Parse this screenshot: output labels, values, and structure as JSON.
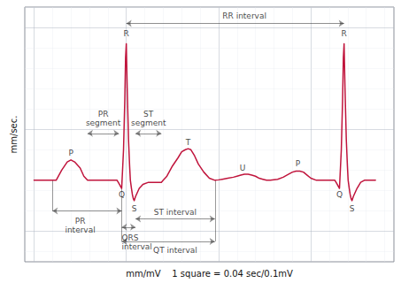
{
  "chart_data": {
    "type": "line",
    "color": "#c0143c",
    "xlabel": "mm/mV    1 square = 0.04 sec/0.1mV",
    "ylabel": "mm/sec.",
    "xlim": [
      -0.5,
      19.5
    ],
    "ylim": [
      3.5,
      16.0
    ],
    "xticks": [
      0,
      1,
      2,
      3,
      4,
      5,
      6,
      7,
      8,
      9,
      10,
      11,
      12,
      13,
      14,
      15,
      16,
      17,
      18,
      19
    ],
    "yticks": [
      4,
      5,
      6,
      7,
      8,
      9,
      10,
      11,
      12,
      13,
      14,
      15,
      16
    ],
    "grid": true,
    "tick_labels": false,
    "x": [
      0.0,
      1.0,
      1.2,
      1.5,
      1.8,
      2.0,
      2.2,
      2.5,
      2.7,
      2.9,
      3.2,
      3.8,
      4.2,
      4.5,
      4.6,
      4.75,
      4.85,
      4.92,
      4.96,
      5.0,
      5.05,
      5.12,
      5.18,
      5.22,
      5.28,
      5.33,
      5.38,
      5.43,
      5.5,
      5.7,
      5.9,
      6.2,
      6.6,
      6.9,
      7.0,
      7.2,
      7.5,
      7.8,
      8.0,
      8.2,
      8.35,
      8.5,
      8.7,
      8.9,
      9.2,
      9.5,
      9.8,
      10.0,
      10.2,
      10.5,
      10.8,
      11.0,
      11.2,
      11.4,
      11.6,
      11.8,
      12.0,
      12.2,
      12.4,
      12.6,
      12.8,
      13.2,
      13.5,
      13.8,
      14.0,
      14.2,
      14.4,
      14.6,
      14.8,
      15.0,
      15.3,
      15.8,
      16.3,
      16.4,
      16.55,
      16.65,
      16.72,
      16.76,
      16.8,
      16.85,
      16.92,
      16.98,
      17.02,
      17.08,
      17.13,
      17.18,
      17.23,
      17.3,
      17.5,
      17.7,
      17.9,
      18.5
    ],
    "values": [
      7.5,
      7.5,
      7.5,
      8.0,
      8.4,
      8.5,
      8.4,
      8.1,
      7.7,
      7.5,
      7.5,
      7.5,
      7.5,
      7.5,
      7.35,
      7.1,
      9.0,
      11.5,
      13.5,
      14.2,
      12.0,
      9.5,
      8.2,
      7.5,
      7.1,
      6.8,
      6.6,
      6.5,
      6.7,
      7.1,
      7.3,
      7.4,
      7.4,
      7.4,
      7.5,
      7.7,
      8.2,
      8.6,
      8.9,
      9.0,
      9.05,
      9.0,
      8.7,
      8.3,
      7.9,
      7.6,
      7.5,
      7.52,
      7.55,
      7.6,
      7.65,
      7.7,
      7.75,
      7.8,
      7.8,
      7.75,
      7.7,
      7.6,
      7.55,
      7.5,
      7.5,
      7.55,
      7.65,
      7.8,
      7.9,
      7.95,
      7.95,
      7.9,
      7.75,
      7.6,
      7.5,
      7.5,
      7.5,
      7.35,
      7.1,
      9.0,
      11.5,
      13.5,
      14.2,
      12.0,
      9.5,
      8.2,
      7.5,
      7.1,
      6.8,
      6.6,
      6.5,
      6.7,
      7.1,
      7.4,
      7.5,
      7.5
    ],
    "annotations": [
      {
        "text": "R",
        "x": 5.0,
        "y": 14.5
      },
      {
        "text": "R",
        "x": 16.8,
        "y": 14.5
      },
      {
        "text": "P",
        "x": 2.0,
        "y": 8.6
      },
      {
        "text": "Q",
        "x": 4.75,
        "y": 7.0
      },
      {
        "text": "S",
        "x": 5.43,
        "y": 6.3
      },
      {
        "text": "T",
        "x": 8.35,
        "y": 9.15
      },
      {
        "text": "U",
        "x": 11.3,
        "y": 7.9
      },
      {
        "text": "P",
        "x": 14.3,
        "y": 8.1
      },
      {
        "text": "Q",
        "x": 16.55,
        "y": 7.0
      },
      {
        "text": "S",
        "x": 17.23,
        "y": 6.3
      },
      {
        "text": "PR\nsegment",
        "x": 3.75,
        "y": 10.1,
        "arrow": {
          "x1": 2.9,
          "x2": 4.6,
          "y": 9.8
        }
      },
      {
        "text": "ST\nsegment",
        "x": 6.2,
        "y": 10.1,
        "arrow": {
          "x1": 5.5,
          "x2": 6.9,
          "y": 9.8
        }
      },
      {
        "text": "RR interval",
        "x": 11.4,
        "y": 15.35,
        "arrow": {
          "x1": 5.0,
          "x2": 16.8,
          "y": 15.2
        }
      },
      {
        "text": "PR\ninterval",
        "x": 2.5,
        "y": 5.7,
        "arrow": {
          "x1": 1.0,
          "x2": 4.75,
          "y": 6.0
        }
      },
      {
        "text": "QRS\ninterval",
        "x": 4.75,
        "y": 4.9,
        "arrow": {
          "x1": 4.75,
          "x2": 5.5,
          "y": 5.2
        }
      },
      {
        "text": "ST interval",
        "x": 7.65,
        "y": 5.7,
        "arrow": {
          "x1": 5.5,
          "x2": 9.8,
          "y": 5.6
        }
      },
      {
        "text": "QT interval",
        "x": 7.65,
        "y": 4.3,
        "arrow": {
          "x1": 4.75,
          "x2": 9.8,
          "y": 4.5
        }
      }
    ],
    "vlines": [
      {
        "x": 1.0,
        "y1": 6.0,
        "y2": 7.5
      },
      {
        "x": 4.75,
        "y1": 4.5,
        "y2": 7.5
      },
      {
        "x": 9.8,
        "y1": 4.5,
        "y2": 7.5
      }
    ]
  }
}
